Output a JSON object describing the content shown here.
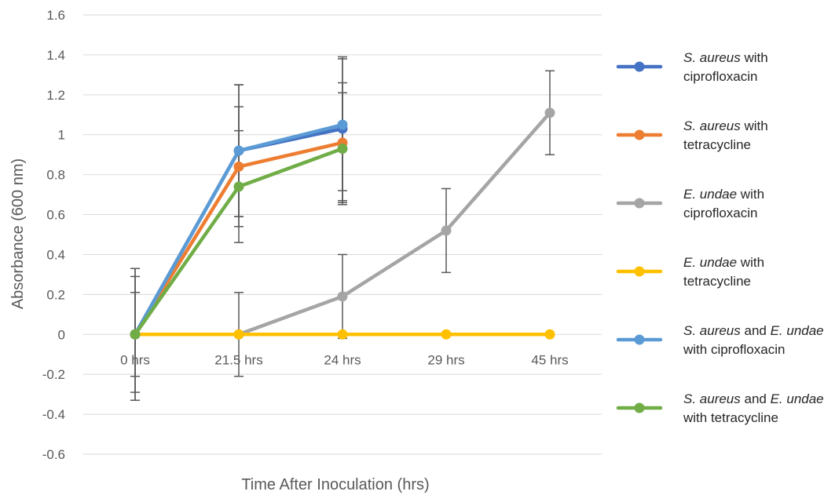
{
  "chart_data": {
    "type": "line",
    "title": "",
    "xlabel": "Time After Inoculation (hrs)",
    "ylabel": "Absorbance (600 nm)",
    "categories": [
      "0 hrs",
      "21.5 hrs",
      "24 hrs",
      "29 hrs",
      "45 hrs"
    ],
    "ylim": [
      -0.6,
      1.6
    ],
    "yticks": [
      -0.6,
      -0.4,
      -0.2,
      0,
      0.2,
      0.4,
      0.6,
      0.8,
      1,
      1.2,
      1.4,
      1.6
    ],
    "ytick_labels": [
      "-0.6",
      "-0.4",
      "-0.2",
      "0",
      "0.2",
      "0.4",
      "0.6",
      "0.8",
      "1",
      "1.2",
      "1.4",
      "1.6"
    ],
    "grid": true,
    "legend_position": "right",
    "series": [
      {
        "name": "S. aureus with ciprofloxacin",
        "name_parts": [
          {
            "text": "S. aureus",
            "italic": true
          },
          {
            "text": " with",
            "italic": false
          }
        ],
        "name_line2": "ciprofloxacin",
        "color": "#4472C4",
        "values": [
          0,
          0.92,
          1.03,
          null,
          null
        ],
        "errors": [
          0.33,
          0.33,
          0.36,
          null,
          null
        ]
      },
      {
        "name": "S. aureus with tetracycline",
        "name_parts": [
          {
            "text": "S. aureus",
            "italic": true
          },
          {
            "text": " with",
            "italic": false
          }
        ],
        "name_line2": "tetracycline",
        "color": "#ED7D31",
        "values": [
          0,
          0.84,
          0.96,
          null,
          null
        ],
        "errors": [
          0.33,
          0.3,
          0.3,
          null,
          null
        ]
      },
      {
        "name": "E. undae with ciprofloxacin",
        "name_parts": [
          {
            "text": "E. undae",
            "italic": true
          },
          {
            "text": " with",
            "italic": false
          }
        ],
        "name_line2": "ciprofloxacin",
        "color": "#A5A5A5",
        "values": [
          null,
          0,
          0.19,
          0.52,
          1.11
        ],
        "errors": [
          null,
          0.21,
          0.21,
          0.21,
          0.21
        ]
      },
      {
        "name": "E. undae with tetracycline",
        "name_parts": [
          {
            "text": "E. undae",
            "italic": true
          },
          {
            "text": " with",
            "italic": false
          }
        ],
        "name_line2": "tetracycline",
        "color": "#FFC000",
        "values": [
          0,
          0,
          0,
          0,
          0
        ],
        "errors": [
          null,
          null,
          null,
          null,
          null
        ]
      },
      {
        "name": "S. aureus and E. undae with ciprofloxacin",
        "name_parts": [
          {
            "text": "S. aureus",
            "italic": true
          },
          {
            "text": " and ",
            "italic": false
          },
          {
            "text": "E. undae",
            "italic": true
          }
        ],
        "name_line2": "with ciprofloxacin",
        "color": "#5B9BD5",
        "values": [
          0,
          0.92,
          1.05,
          null,
          null
        ],
        "errors": [
          0.29,
          0.33,
          0.33,
          null,
          null
        ]
      },
      {
        "name": "S. aureus and E. undae with tetracycline",
        "name_parts": [
          {
            "text": "S. aureus",
            "italic": true
          },
          {
            "text": " and ",
            "italic": false
          },
          {
            "text": "E. undae",
            "italic": true
          }
        ],
        "name_line2": "with tetracycline",
        "color": "#70AD47",
        "values": [
          0,
          0.74,
          0.93,
          null,
          null
        ],
        "errors": [
          0.21,
          0.28,
          0.28,
          null,
          null
        ]
      }
    ]
  }
}
